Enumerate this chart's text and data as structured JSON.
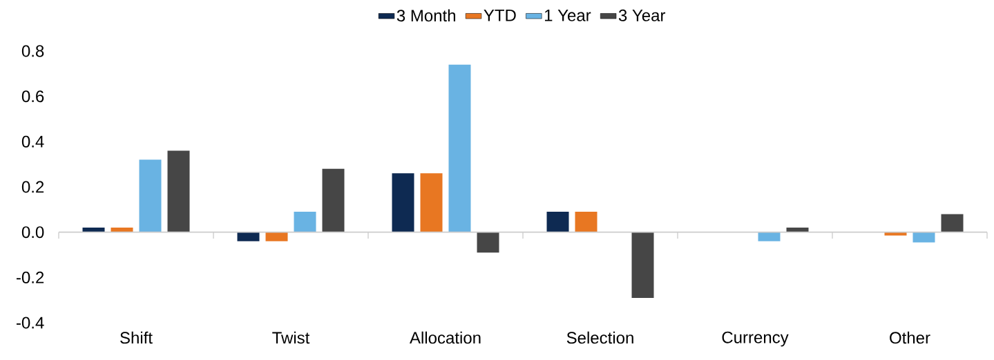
{
  "chart_data": {
    "type": "bar",
    "categories": [
      "Shift",
      "Twist",
      "Allocation",
      "Selection",
      "Currency",
      "Other"
    ],
    "series": [
      {
        "name": "3  Month",
        "color": "#0e2a52",
        "values": [
          0.02,
          -0.04,
          0.26,
          0.09,
          null,
          null
        ]
      },
      {
        "name": "YTD",
        "color": "#e87722",
        "values": [
          0.02,
          -0.04,
          0.26,
          0.09,
          null,
          -0.015
        ]
      },
      {
        "name": "1 Year",
        "color": "#69b3e3",
        "values": [
          0.32,
          0.09,
          0.74,
          null,
          -0.04,
          -0.045
        ]
      },
      {
        "name": "3 Year",
        "color": "#464646",
        "values": [
          0.36,
          0.28,
          -0.09,
          -0.29,
          0.02,
          0.08
        ]
      }
    ],
    "ylim": [
      -0.4,
      0.8
    ],
    "yticks": [
      {
        "value": -0.4,
        "label": "-0.4"
      },
      {
        "value": -0.2,
        "label": "-0.2"
      },
      {
        "value": 0,
        "label": "0.0"
      },
      {
        "value": 0.2,
        "label": "0.2"
      },
      {
        "value": 0.4,
        "label": "0.4"
      },
      {
        "value": 0.6,
        "label": "0.6"
      },
      {
        "value": 0.8,
        "label": "0.8"
      }
    ],
    "legend": "top"
  }
}
